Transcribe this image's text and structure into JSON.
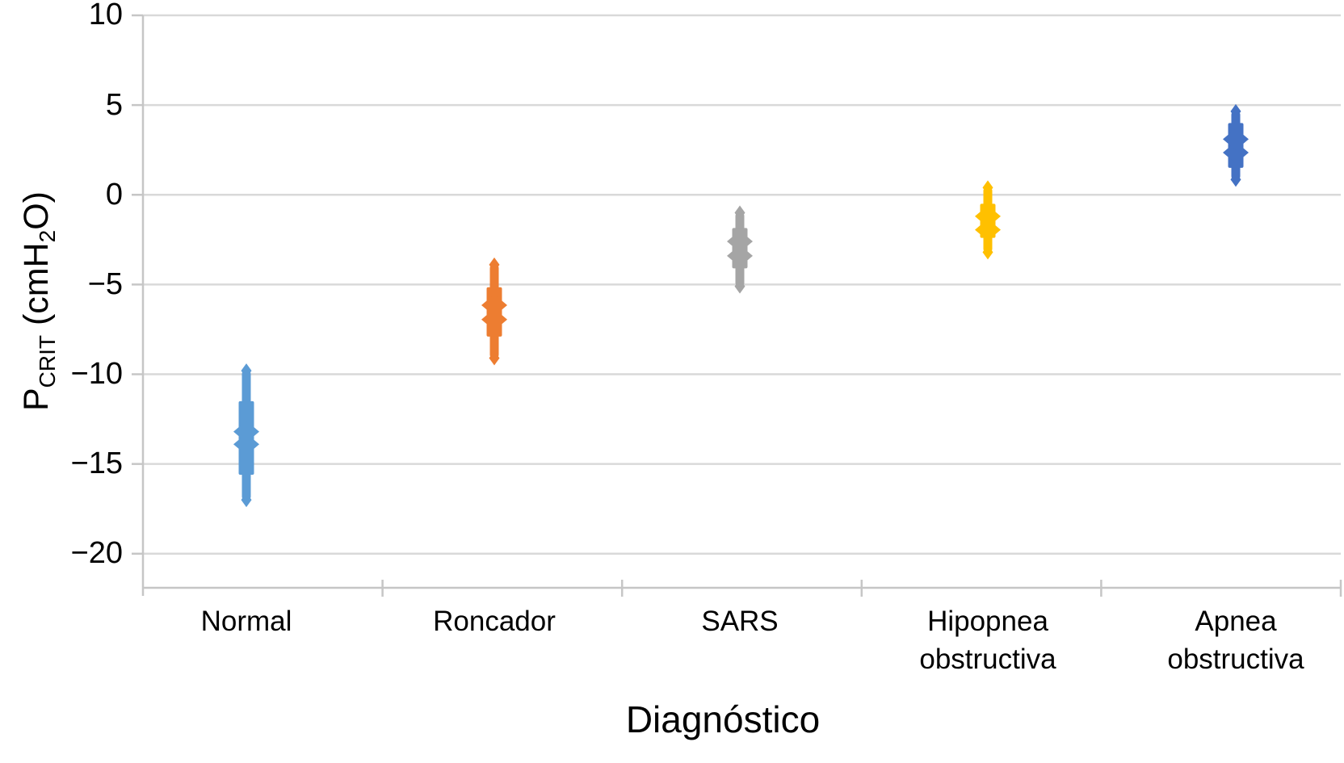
{
  "chart_data": {
    "type": "scatter",
    "subtype": "strip-plot-of-overlapping-diamond-markers",
    "title": "",
    "xlabel": "Diagnóstico",
    "ylabel": {
      "main": "P",
      "main_sub": "CRIT",
      "unit_pre": " (cmH",
      "unit_sub": "2",
      "unit_post": "O)",
      "full_text": "PCRIT (cmH2O)"
    },
    "ylim": [
      -21.9,
      10
    ],
    "grid": true,
    "legend": "none",
    "yticks": [
      {
        "label": "10",
        "value": 10
      },
      {
        "label": "5",
        "value": 5
      },
      {
        "label": "0",
        "value": 0
      },
      {
        "label": "−5",
        "value": -5
      },
      {
        "label": "−10",
        "value": -10
      },
      {
        "label": "−15",
        "value": -15
      },
      {
        "label": "−20",
        "value": -20
      }
    ],
    "categories": [
      {
        "line1": "Normal",
        "line2": ""
      },
      {
        "line1": "Roncador",
        "line2": ""
      },
      {
        "line1": "SARS",
        "line2": ""
      },
      {
        "line1": "Hipopnea",
        "line2": "obstructiva"
      },
      {
        "line1": "Apnea",
        "line2": "obstructiva"
      }
    ],
    "series": [
      {
        "name": "Normal",
        "color": "#5B9BD5",
        "min": -17.0,
        "max": -9.8,
        "core": [
          -11.5,
          -15.6
        ],
        "peaks": [
          -13.2,
          -13.9
        ],
        "points": [
          -9.8,
          -11.6,
          -11.9,
          -12.3,
          -12.6,
          -12.9,
          -13.2,
          -13.5,
          -13.9,
          -14.2,
          -14.6,
          -15.0,
          -15.4,
          -16.2,
          -17.0
        ]
      },
      {
        "name": "Roncador",
        "color": "#ED7D31",
        "min": -9.1,
        "max": -3.9,
        "core": [
          -5.15,
          -7.9
        ],
        "peaks": [
          -6.15,
          -6.95
        ],
        "points": [
          -3.9,
          -5.2,
          -5.5,
          -5.8,
          -6.1,
          -6.4,
          -6.7,
          -7.0,
          -7.3,
          -7.6,
          -7.9,
          -8.5,
          -9.1
        ]
      },
      {
        "name": "SARS",
        "color": "#A5A5A5",
        "min": -5.1,
        "max": -1.0,
        "core": [
          -1.85,
          -4.1
        ],
        "peaks": [
          -2.6,
          -3.4
        ],
        "points": [
          -1.0,
          -1.9,
          -2.2,
          -2.6,
          -2.9,
          -3.1,
          -3.4,
          -3.7,
          -4.0,
          -4.6,
          -5.1
        ]
      },
      {
        "name": "Hipopnea obstructiva",
        "color": "#FFC000",
        "min": -3.2,
        "max": 0.4,
        "core": [
          -0.5,
          -2.4
        ],
        "peaks": [
          -1.2,
          -1.95
        ],
        "points": [
          0.4,
          -0.5,
          -0.8,
          -1.2,
          -1.5,
          -1.8,
          -2.1,
          -2.4,
          -2.8,
          -3.2
        ]
      },
      {
        "name": "Apnea obstructiva",
        "color": "#4472C4",
        "min": 0.85,
        "max": 4.65,
        "core": [
          1.5,
          4.0
        ],
        "peaks": [
          2.35,
          3.1
        ],
        "points": [
          4.6,
          4.0,
          3.7,
          3.4,
          3.1,
          2.8,
          2.4,
          2.1,
          1.8,
          1.5,
          0.9
        ]
      }
    ],
    "colors": {
      "grid": "#d9d9d9",
      "axis": "#c6c6c6",
      "text": "#000000",
      "background": "#ffffff"
    }
  }
}
